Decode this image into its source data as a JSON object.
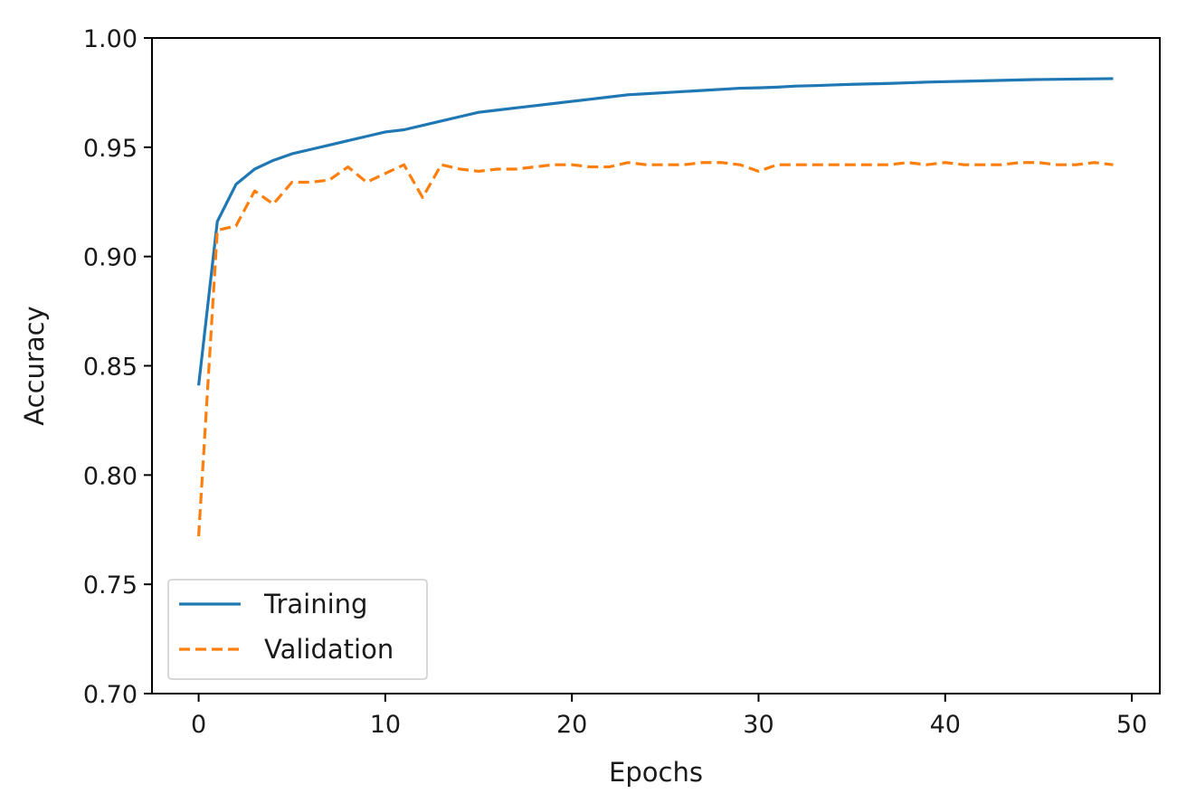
{
  "chart_data": {
    "type": "line",
    "title": "",
    "xlabel": "Epochs",
    "ylabel": "Accuracy",
    "xlim": [
      -2.5,
      51.5
    ],
    "ylim": [
      0.7,
      1.0
    ],
    "xticks": [
      0,
      10,
      20,
      30,
      40,
      50
    ],
    "yticks": [
      0.7,
      0.75,
      0.8,
      0.85,
      0.9,
      0.95,
      1.0
    ],
    "xtick_labels": [
      "0",
      "10",
      "20",
      "30",
      "40",
      "50"
    ],
    "ytick_labels": [
      "0.70",
      "0.75",
      "0.80",
      "0.85",
      "0.90",
      "0.95",
      "1.00"
    ],
    "grid": false,
    "legend_position": "bottom-left",
    "x": [
      0,
      1,
      2,
      3,
      4,
      5,
      6,
      7,
      8,
      9,
      10,
      11,
      12,
      13,
      14,
      15,
      16,
      17,
      18,
      19,
      20,
      21,
      22,
      23,
      24,
      25,
      26,
      27,
      28,
      29,
      30,
      31,
      32,
      33,
      34,
      35,
      36,
      37,
      38,
      39,
      40,
      41,
      42,
      43,
      44,
      45,
      46,
      47,
      48,
      49
    ],
    "series": [
      {
        "name": "Training",
        "color": "#1f77b4",
        "dash": "solid",
        "values": [
          0.841,
          0.916,
          0.933,
          0.94,
          0.944,
          0.947,
          0.949,
          0.951,
          0.953,
          0.955,
          0.957,
          0.958,
          0.96,
          0.962,
          0.964,
          0.966,
          0.967,
          0.968,
          0.969,
          0.97,
          0.971,
          0.972,
          0.973,
          0.974,
          0.9745,
          0.975,
          0.9755,
          0.976,
          0.9765,
          0.977,
          0.9772,
          0.9775,
          0.978,
          0.9782,
          0.9785,
          0.9788,
          0.979,
          0.9792,
          0.9795,
          0.9798,
          0.98,
          0.9802,
          0.9804,
          0.9806,
          0.9808,
          0.981,
          0.9811,
          0.9812,
          0.9813,
          0.9814
        ]
      },
      {
        "name": "Validation",
        "color": "#ff7f0e",
        "dash": "dashed",
        "values": [
          0.772,
          0.912,
          0.914,
          0.93,
          0.924,
          0.934,
          0.934,
          0.935,
          0.941,
          0.934,
          0.938,
          0.942,
          0.927,
          0.942,
          0.94,
          0.939,
          0.94,
          0.94,
          0.941,
          0.942,
          0.942,
          0.941,
          0.941,
          0.943,
          0.942,
          0.942,
          0.942,
          0.943,
          0.943,
          0.942,
          0.939,
          0.942,
          0.942,
          0.942,
          0.942,
          0.942,
          0.942,
          0.942,
          0.943,
          0.942,
          0.943,
          0.942,
          0.942,
          0.942,
          0.943,
          0.943,
          0.942,
          0.942,
          0.943,
          0.942
        ]
      }
    ]
  }
}
